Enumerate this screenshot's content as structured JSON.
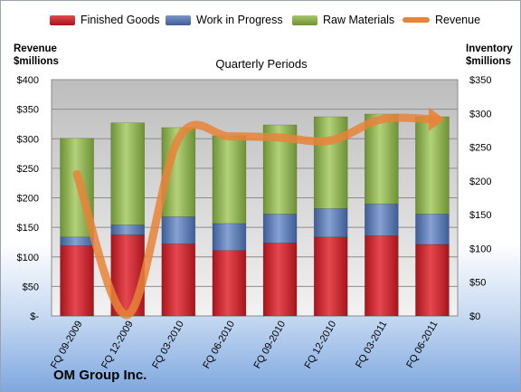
{
  "company": "OM Group Inc.",
  "chart_data": {
    "type": "bar",
    "subtype": "stacked-bar-with-line",
    "title": "Quarterly Periods",
    "left_axis": {
      "label_line1": "Revenue",
      "label_line2": "$millions",
      "min": 0,
      "max": 400,
      "ticks": [
        "$-",
        "$50",
        "$100",
        "$150",
        "$200",
        "$250",
        "$300",
        "$350",
        "$400"
      ]
    },
    "right_axis": {
      "label_line1": "Inventory",
      "label_line2": "$millions",
      "min": 0,
      "max": 350,
      "ticks": [
        "$0",
        "$50",
        "$100",
        "$150",
        "$200",
        "$250",
        "$300",
        "$350"
      ]
    },
    "categories": [
      "FQ 09-2009",
      "FQ 12-2009",
      "FQ 03-2010",
      "FQ 06-2010",
      "FQ 09-2010",
      "FQ 12-2010",
      "FQ 03-2011",
      "FQ 06-2011"
    ],
    "series": [
      {
        "name": "Finished Goods",
        "axis": "right",
        "color": "#c0202a",
        "values": [
          104,
          120,
          107,
          97,
          108,
          117,
          119,
          106
        ]
      },
      {
        "name": "Work in Progress",
        "axis": "right",
        "color": "#4f6fa8",
        "values": [
          13,
          15,
          40,
          40,
          43,
          42,
          47,
          45
        ]
      },
      {
        "name": "Raw Materials",
        "axis": "right",
        "color": "#8fb351",
        "values": [
          146,
          151,
          132,
          130,
          132,
          136,
          133,
          144
        ]
      },
      {
        "name": "Revenue",
        "axis": "left",
        "type": "line",
        "color": "#e8833a",
        "values": [
          240,
          2,
          300,
          304,
          302,
          297,
          333,
          333
        ]
      }
    ],
    "grid": true,
    "legend_position": "top"
  }
}
